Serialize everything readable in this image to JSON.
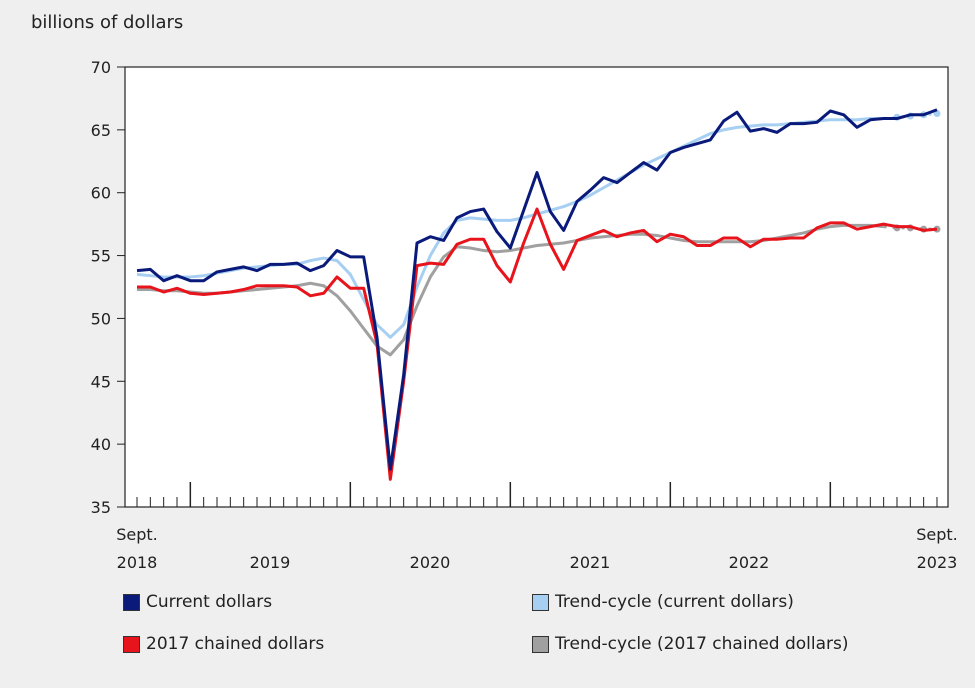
{
  "chart_data": {
    "type": "line",
    "ylabel": "billions of dollars",
    "ylim": [
      35,
      70
    ],
    "yticks": [
      35,
      40,
      45,
      50,
      55,
      60,
      65,
      70
    ],
    "x_start": "Sept. 2018",
    "x_end": "Sept. 2023",
    "frequency": "monthly",
    "xtick_labels": [
      {
        "line1": "Sept.",
        "line2": "2018"
      },
      {
        "line1": "",
        "line2": "2019"
      },
      {
        "line1": "",
        "line2": "2020"
      },
      {
        "line1": "",
        "line2": "2021"
      },
      {
        "line1": "",
        "line2": "2022"
      },
      {
        "line1": "Sept.",
        "line2": "2023"
      }
    ],
    "preliminary_trend_points": 4,
    "series": [
      {
        "name": "Current dollars",
        "color": "#0a1a7a",
        "values": [
          53.8,
          53.9,
          53.0,
          53.4,
          53.0,
          53.0,
          53.7,
          53.9,
          54.1,
          53.8,
          54.3,
          54.3,
          54.4,
          53.8,
          54.2,
          55.4,
          54.9,
          54.9,
          48.5,
          38.0,
          45.5,
          56.0,
          56.5,
          56.2,
          58.0,
          58.5,
          58.7,
          56.9,
          55.6,
          58.6,
          61.6,
          58.5,
          57.0,
          59.3,
          60.2,
          61.2,
          60.8,
          61.6,
          62.4,
          61.8,
          63.2,
          63.6,
          63.9,
          64.2,
          65.7,
          66.4,
          64.9,
          65.1,
          64.8,
          65.5,
          65.5,
          65.6,
          66.5,
          66.2,
          65.2,
          65.8,
          65.9,
          65.9,
          66.2,
          66.2,
          66.6
        ]
      },
      {
        "name": "Trend-cycle (current dollars)",
        "color": "#a6cff2",
        "trend": true,
        "values": [
          53.5,
          53.4,
          53.3,
          53.3,
          53.3,
          53.4,
          53.6,
          53.8,
          54.0,
          54.1,
          54.2,
          54.3,
          54.3,
          54.6,
          54.8,
          54.6,
          53.5,
          51.5,
          49.5,
          48.5,
          49.5,
          52.5,
          55.0,
          56.8,
          57.8,
          58.0,
          57.9,
          57.8,
          57.8,
          58.0,
          58.3,
          58.6,
          58.9,
          59.3,
          59.8,
          60.4,
          61.0,
          61.6,
          62.2,
          62.7,
          63.2,
          63.7,
          64.2,
          64.7,
          65.0,
          65.2,
          65.3,
          65.4,
          65.4,
          65.5,
          65.6,
          65.7,
          65.8,
          65.8,
          65.8,
          65.9,
          65.9,
          66.0,
          66.1,
          66.2,
          66.3
        ]
      },
      {
        "name": "2017 chained dollars",
        "color": "#e8141c",
        "values": [
          52.5,
          52.5,
          52.1,
          52.4,
          52.0,
          51.9,
          52.0,
          52.1,
          52.3,
          52.6,
          52.6,
          52.6,
          52.5,
          51.8,
          52.0,
          53.3,
          52.4,
          52.4,
          48.0,
          37.2,
          45.0,
          54.2,
          54.4,
          54.3,
          55.9,
          56.3,
          56.3,
          54.2,
          52.9,
          56.0,
          58.7,
          55.9,
          53.9,
          56.2,
          56.6,
          57.0,
          56.5,
          56.8,
          57.0,
          56.1,
          56.7,
          56.5,
          55.8,
          55.8,
          56.4,
          56.4,
          55.7,
          56.3,
          56.3,
          56.4,
          56.4,
          57.2,
          57.6,
          57.6,
          57.1,
          57.3,
          57.5,
          57.3,
          57.3,
          57.0,
          57.1
        ]
      },
      {
        "name": "Trend-cycle (2017 chained dollars)",
        "color": "#a0a0a0",
        "trend": true,
        "values": [
          52.3,
          52.3,
          52.2,
          52.2,
          52.1,
          52.0,
          52.0,
          52.1,
          52.2,
          52.3,
          52.4,
          52.5,
          52.6,
          52.8,
          52.6,
          51.8,
          50.6,
          49.2,
          47.8,
          47.1,
          48.3,
          51.0,
          53.3,
          54.9,
          55.7,
          55.6,
          55.4,
          55.3,
          55.4,
          55.6,
          55.8,
          55.9,
          56.0,
          56.2,
          56.4,
          56.5,
          56.6,
          56.7,
          56.7,
          56.6,
          56.4,
          56.2,
          56.1,
          56.1,
          56.1,
          56.1,
          56.1,
          56.2,
          56.4,
          56.6,
          56.8,
          57.1,
          57.3,
          57.4,
          57.4,
          57.4,
          57.3,
          57.2,
          57.2,
          57.1,
          57.1
        ]
      }
    ],
    "legend": [
      "Current dollars",
      "Trend-cycle (current dollars)",
      "2017 chained dollars",
      "Trend-cycle (2017 chained dollars)"
    ],
    "legend_placement": "bottom"
  }
}
